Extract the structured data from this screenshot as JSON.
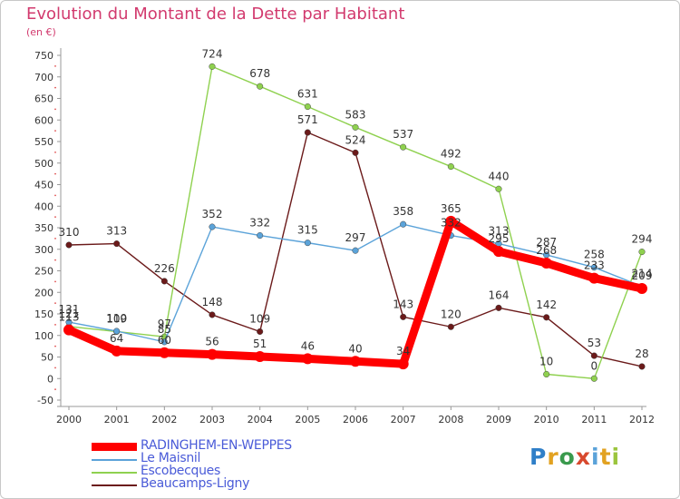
{
  "chart_data": {
    "type": "line",
    "title": "Evolution du Montant de la Dette par Habitant",
    "unit_label": "(en €)",
    "x": [
      "2000",
      "2001",
      "2002",
      "2003",
      "2004",
      "2005",
      "2006",
      "2007",
      "2008",
      "2009",
      "2010",
      "2011",
      "2012"
    ],
    "yticks": [
      "750",
      "700",
      "650",
      "600",
      "550",
      "500",
      "450",
      "400",
      "350",
      "300",
      "250",
      "200",
      "150",
      "100",
      "50",
      "0",
      "-50"
    ],
    "ylim": [
      -50,
      750
    ],
    "grid": false,
    "legend_position": "bottom-left",
    "series": [
      {
        "name": "Beaucamps-Ligny",
        "color": "#6b1a1a",
        "thick": false,
        "values": [
          310,
          313,
          226,
          148,
          109,
          571,
          524,
          143,
          120,
          164,
          142,
          53,
          28
        ]
      },
      {
        "name": "Escobecques",
        "color": "#8fd14f",
        "thick": false,
        "values": [
          121,
          109,
          97,
          724,
          678,
          631,
          583,
          537,
          492,
          440,
          10,
          0,
          294
        ]
      },
      {
        "name": "Le Maisnil",
        "color": "#5ba3d9",
        "thick": false,
        "values": [
          131,
          110,
          85,
          352,
          332,
          315,
          297,
          358,
          332,
          313,
          287,
          258,
          214
        ]
      },
      {
        "name": "RADINGHEM-EN-WEPPES",
        "color": "#ff0000",
        "thick": true,
        "values": [
          113,
          64,
          60,
          56,
          51,
          46,
          40,
          34,
          365,
          295,
          268,
          233,
          209
        ]
      }
    ],
    "legend_order": [
      "RADINGHEM-EN-WEPPES",
      "Le Maisnil",
      "Escobecques",
      "Beaucamps-Ligny"
    ]
  },
  "logo": [
    "P",
    "r",
    "o",
    "x",
    "i",
    "t",
    "i"
  ]
}
